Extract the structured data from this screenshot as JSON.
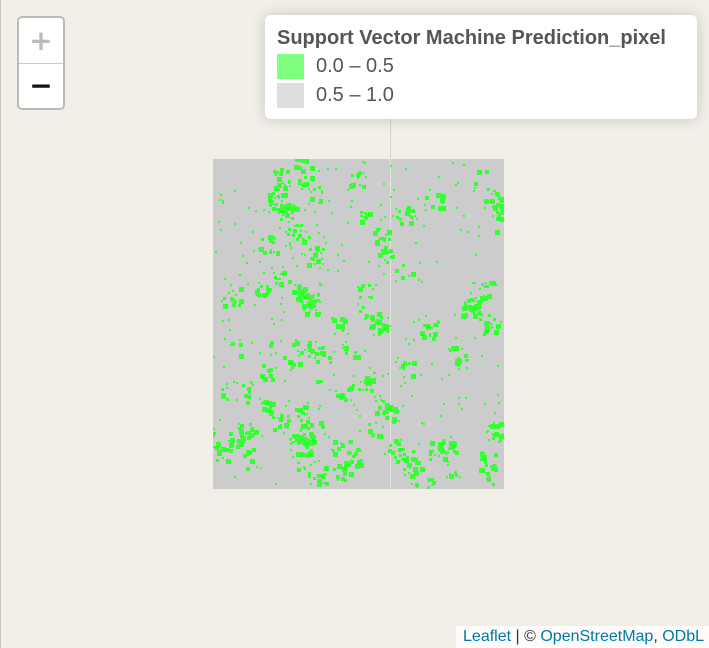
{
  "zoom": {
    "in_label": "+",
    "out_label": "−"
  },
  "legend": {
    "title": "Support Vector Machine Prediction_pixel",
    "items": [
      {
        "label": "0.0 – 0.5",
        "color": "#80ff80"
      },
      {
        "label": "0.5 – 1.0",
        "color": "#dddddd"
      }
    ]
  },
  "raster": {
    "base_color": "#cccccc",
    "patch_color": "#33ff33"
  },
  "attribution": {
    "leaflet": "Leaflet",
    "separator": " | © ",
    "osm": "OpenStreetMap",
    "comma": ", ",
    "odbl": "ODbL"
  }
}
